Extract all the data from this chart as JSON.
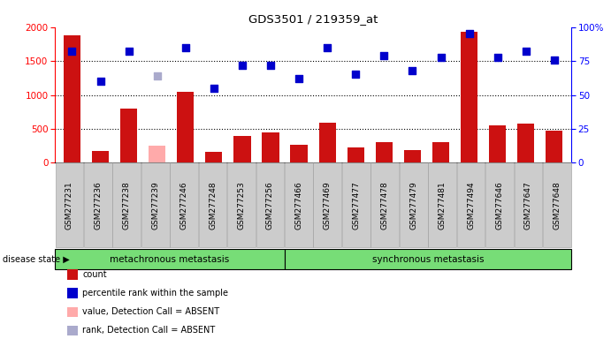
{
  "title": "GDS3501 / 219359_at",
  "samples": [
    "GSM277231",
    "GSM277236",
    "GSM277238",
    "GSM277239",
    "GSM277246",
    "GSM277248",
    "GSM277253",
    "GSM277256",
    "GSM277466",
    "GSM277469",
    "GSM277477",
    "GSM277478",
    "GSM277479",
    "GSM277481",
    "GSM277494",
    "GSM277646",
    "GSM277647",
    "GSM277648"
  ],
  "counts": [
    1880,
    170,
    800,
    0,
    1050,
    155,
    390,
    450,
    260,
    590,
    230,
    310,
    190,
    310,
    1930,
    545,
    580,
    470
  ],
  "absent_counts": [
    0,
    0,
    0,
    250,
    0,
    0,
    0,
    0,
    0,
    0,
    0,
    0,
    0,
    0,
    0,
    0,
    0,
    0
  ],
  "percentile_ranks": [
    82,
    60,
    82,
    0,
    85,
    55,
    72,
    72,
    62,
    85,
    65,
    79,
    68,
    78,
    95,
    78,
    82,
    76
  ],
  "absent_ranks": [
    0,
    0,
    0,
    64,
    0,
    0,
    0,
    0,
    0,
    0,
    0,
    0,
    0,
    0,
    0,
    0,
    0,
    0
  ],
  "group1_label": "metachronous metastasis",
  "group2_label": "synchronous metastasis",
  "group1_count": 8,
  "group2_count": 10,
  "ylim_left": [
    0,
    2000
  ],
  "ylim_right": [
    0,
    100
  ],
  "yticks_left": [
    0,
    500,
    1000,
    1500,
    2000
  ],
  "yticks_right": [
    0,
    25,
    50,
    75,
    100
  ],
  "bar_color": "#cc1111",
  "absent_bar_color": "#ffaaaa",
  "dot_color": "#0000cc",
  "absent_dot_color": "#aaaacc",
  "group_bg": "#77dd77",
  "xtick_bg": "#cccccc"
}
